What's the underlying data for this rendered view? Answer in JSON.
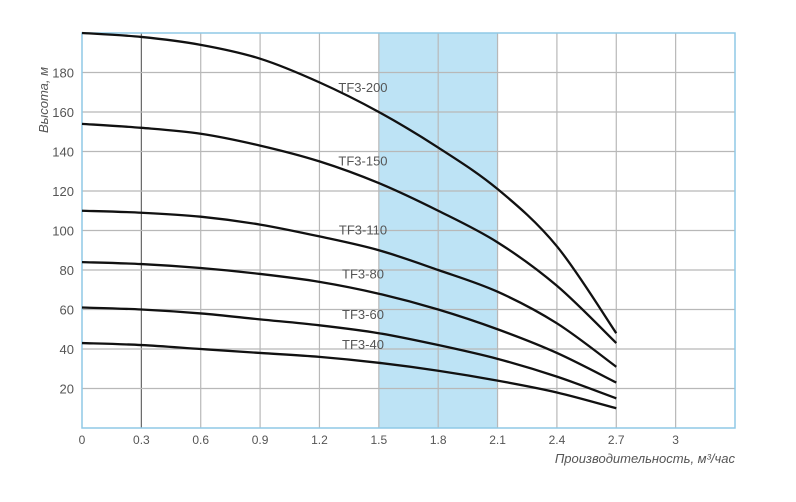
{
  "chart_data": {
    "type": "line",
    "title": "",
    "xlabel": "Производительность, м³/час",
    "ylabel": "Высота, м",
    "xlim": [
      0,
      3.3
    ],
    "ylim": [
      0,
      200
    ],
    "x_ticks": [
      "0",
      "0.3",
      "0.6",
      "0.9",
      "1.2",
      "1.5",
      "1.8",
      "2.1",
      "2.4",
      "2.7",
      "3"
    ],
    "y_ticks": [
      "20",
      "40",
      "60",
      "80",
      "100",
      "120",
      "140",
      "160",
      "180"
    ],
    "grid": true,
    "highlight_band": {
      "x_from": 1.5,
      "x_to": 2.1,
      "color": "#bde3f5"
    },
    "colors": {
      "curve": "#111111",
      "grid": "#b8b8b8",
      "border": "#8fc9e6"
    },
    "x": [
      0,
      0.3,
      0.6,
      0.9,
      1.2,
      1.5,
      1.8,
      2.1,
      2.4,
      2.7
    ],
    "series": [
      {
        "name": "TF3-200",
        "values": [
          200,
          198,
          194,
          187,
          175,
          160,
          142,
          121,
          92,
          48
        ]
      },
      {
        "name": "TF3-150",
        "values": [
          154,
          152,
          149,
          143,
          135,
          124,
          110,
          94,
          72,
          43
        ]
      },
      {
        "name": "TF3-110",
        "values": [
          110,
          109,
          107,
          103,
          97,
          90,
          80,
          69,
          53,
          31
        ]
      },
      {
        "name": "TF3-80",
        "values": [
          84,
          83,
          81,
          78,
          74,
          68,
          60,
          50,
          38,
          23
        ]
      },
      {
        "name": "TF3-60",
        "values": [
          61,
          60,
          58,
          55,
          52,
          48,
          42,
          35,
          26,
          15
        ]
      },
      {
        "name": "TF3-40",
        "values": [
          43,
          42,
          40,
          38,
          36,
          33,
          29,
          24,
          18,
          10
        ]
      }
    ]
  }
}
